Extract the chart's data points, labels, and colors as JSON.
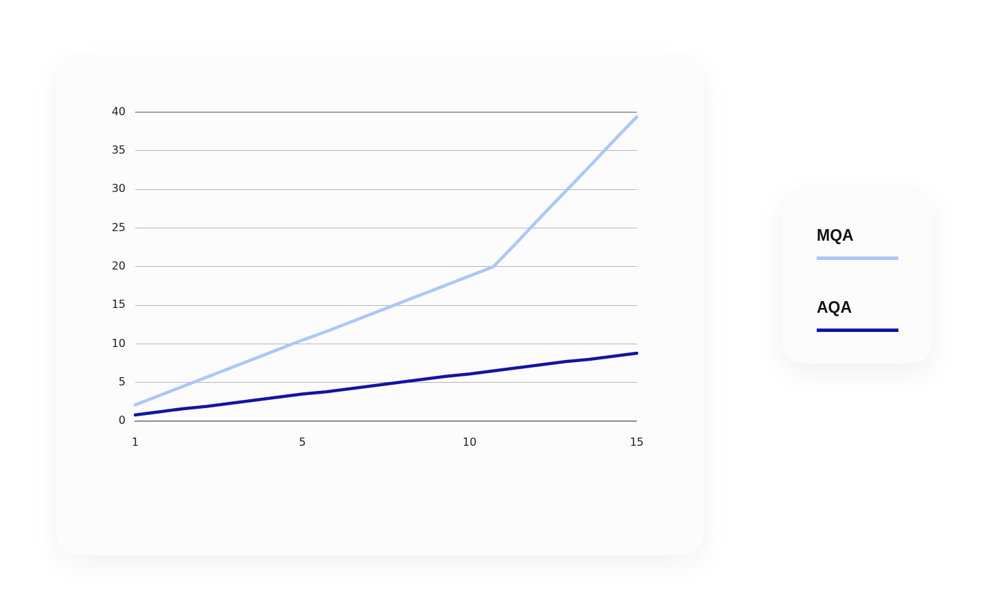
{
  "chart_data": {
    "type": "line",
    "categories": [
      "1",
      null,
      null,
      null,
      null,
      null,
      null,
      "5",
      null,
      null,
      null,
      null,
      null,
      null,
      "10",
      null,
      null,
      null,
      null,
      null,
      null,
      "15"
    ],
    "ylim": [
      0,
      40
    ],
    "yticks": [
      0,
      5,
      10,
      15,
      20,
      25,
      30,
      35,
      40
    ],
    "grid": "y",
    "legend": "right",
    "marker": "none",
    "line_style": "solid",
    "series": [
      {
        "name": "MQA",
        "color": "#aec6f8",
        "values": [
          2.1,
          3.3,
          4.5,
          5.7,
          6.9,
          8.1,
          9.3,
          10.5,
          11.6,
          12.8,
          14.0,
          15.2,
          16.4,
          17.6,
          18.8,
          20,
          23.2,
          26.5,
          29.7,
          32.9,
          36.2,
          39.4
        ]
      },
      {
        "name": "AQA",
        "color": "#1414a0",
        "values": [
          0.8,
          1.2,
          1.6,
          1.9,
          2.3,
          2.7,
          3.1,
          3.5,
          3.8,
          4.2,
          4.6,
          5.0,
          5.4,
          5.8,
          6.1,
          6.5,
          6.9,
          7.3,
          7.7,
          8.0,
          8.4,
          8.8
        ]
      }
    ]
  }
}
